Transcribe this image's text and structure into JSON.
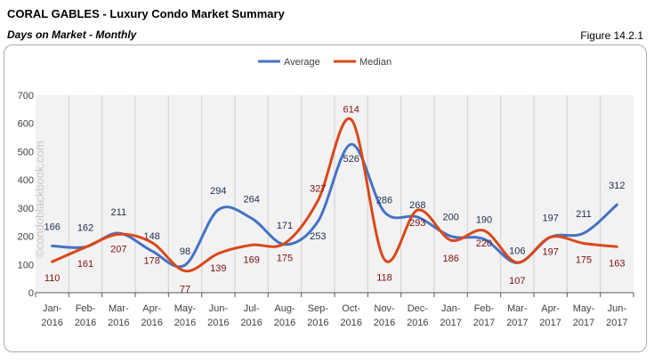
{
  "header": {
    "title": "CORAL GABLES - Luxury Condo Market Summary",
    "subtitle": "Days on Market - Monthly",
    "figure": "Figure 14.2.1"
  },
  "watermark": "©condoblackbook.com",
  "chart_data": {
    "type": "line",
    "categories": [
      [
        "Jan-",
        "2016"
      ],
      [
        "Feb-",
        "2016"
      ],
      [
        "Mar-",
        "2016"
      ],
      [
        "Apr-",
        "2016"
      ],
      [
        "May-",
        "2016"
      ],
      [
        "Jun-",
        "2016"
      ],
      [
        "Jul-",
        "2016"
      ],
      [
        "Aug-",
        "2016"
      ],
      [
        "Sep-",
        "2016"
      ],
      [
        "Oct-",
        "2016"
      ],
      [
        "Nov-",
        "2016"
      ],
      [
        "Dec-",
        "2016"
      ],
      [
        "Jan-",
        "2017"
      ],
      [
        "Feb-",
        "2017"
      ],
      [
        "Mar-",
        "2017"
      ],
      [
        "Apr-",
        "2017"
      ],
      [
        "May-",
        "2017"
      ],
      [
        "Jun-",
        "2017"
      ]
    ],
    "series": [
      {
        "name": "Average",
        "color": "#4472c4",
        "label_color": "#1f2d4a",
        "values": [
          166,
          162,
          211,
          148,
          98,
          294,
          264,
          171,
          253,
          526,
          286,
          268,
          200,
          190,
          106,
          197,
          211,
          312
        ]
      },
      {
        "name": "Median",
        "color": "#d9481a",
        "label_color": "#7b1010",
        "values": [
          110,
          161,
          207,
          178,
          77,
          139,
          169,
          175,
          327,
          614,
          118,
          293,
          186,
          220,
          107,
          197,
          175,
          163
        ]
      }
    ],
    "ylim": [
      0,
      700
    ],
    "yticks": [
      "0",
      "100",
      "200",
      "300",
      "400",
      "500",
      "600",
      "700"
    ],
    "grid": "vertical",
    "legend": "top-center",
    "smooth": true
  }
}
